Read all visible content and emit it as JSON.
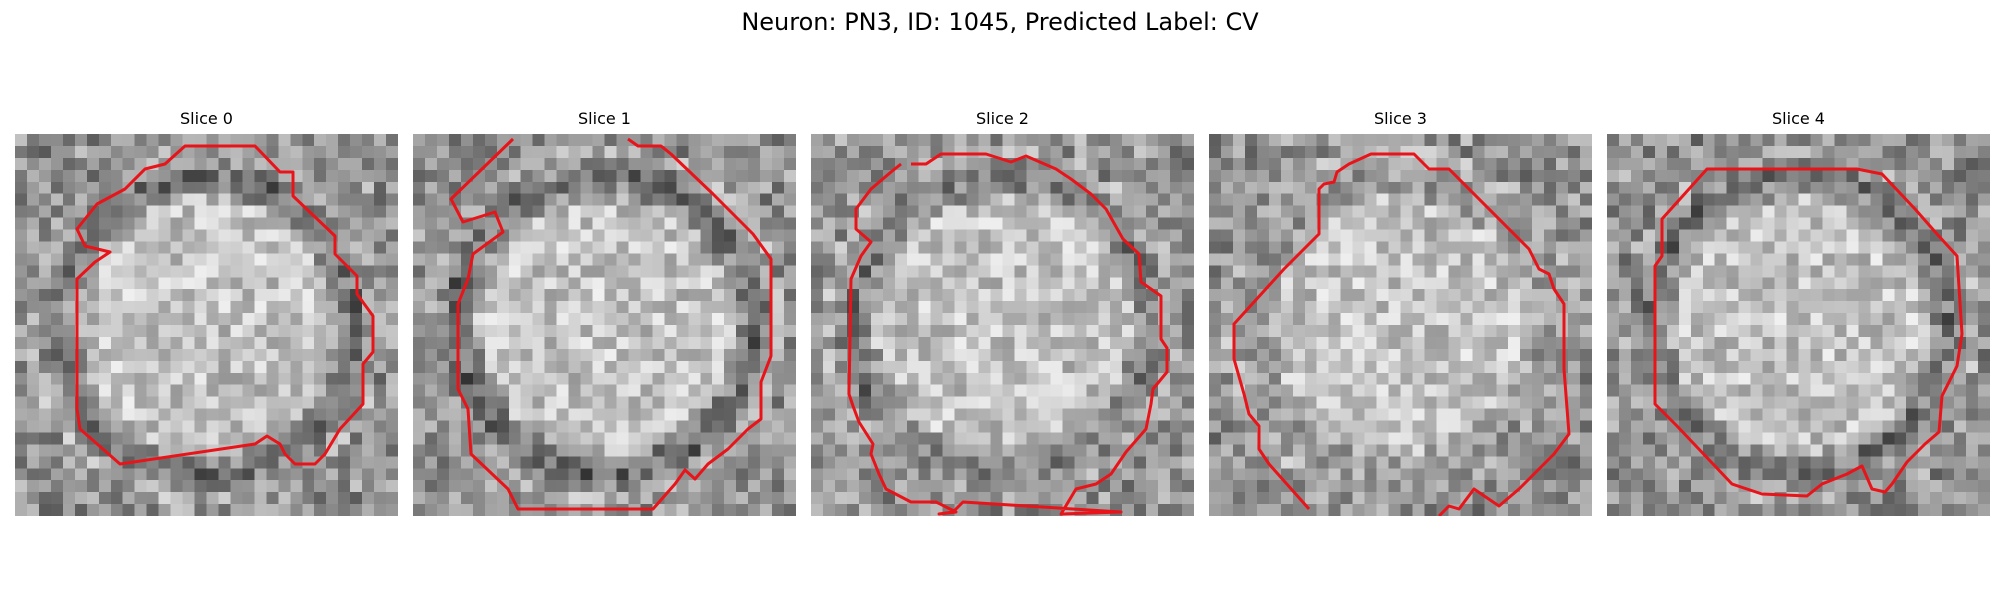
{
  "figure": {
    "title": "Neuron: PN3, ID: 1045, Predicted Label: CV",
    "contour_color": "#e8141a",
    "colormap": "grayscale",
    "panels": [
      {
        "title": "Slice 0",
        "seed": 11,
        "ring": 0.85
      },
      {
        "title": "Slice 1",
        "seed": 23,
        "ring": 1.0
      },
      {
        "title": "Slice 2",
        "seed": 37,
        "ring": 0.75
      },
      {
        "title": "Slice 3",
        "seed": 41,
        "ring": 0.35
      },
      {
        "title": "Slice 4",
        "seed": 59,
        "ring": 0.9
      }
    ]
  }
}
